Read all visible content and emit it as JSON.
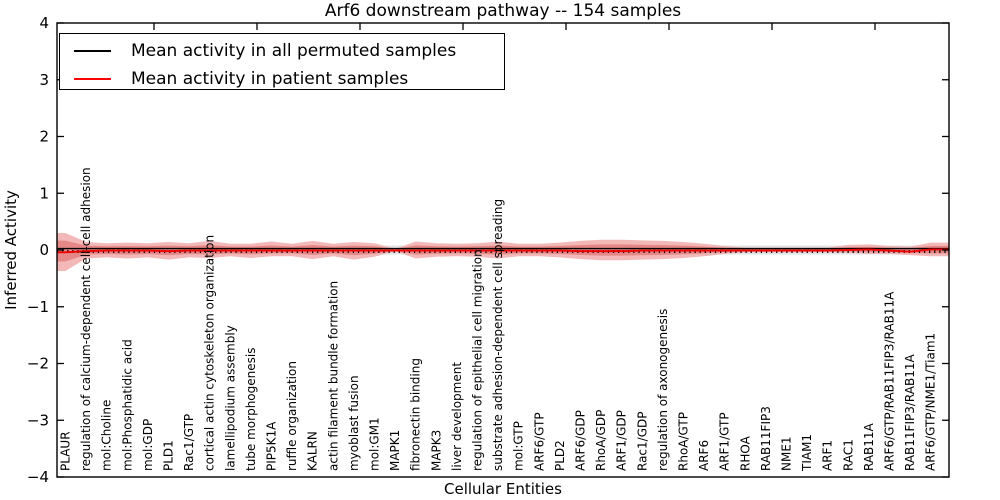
{
  "chart_data": {
    "type": "line",
    "title": "Arf6 downstream pathway -- 154 samples",
    "xlabel": "Cellular Entities",
    "ylabel": "Inferred Activity",
    "ylim": [
      -4,
      4
    ],
    "ytick_values": [
      4,
      3,
      2,
      1,
      0,
      -1,
      -2,
      -3,
      -4
    ],
    "ytick_labels": [
      "4",
      "3",
      "2",
      "1",
      "0",
      "−1",
      "−2",
      "−3",
      "−4"
    ],
    "grid": false,
    "legend_position": "upper left",
    "categories": [
      "PLAUR",
      "regulation of calcium-dependent cell-cell adhesion",
      "mol:Choline",
      "mol:Phosphatidic acid",
      "mol:GDP",
      "PLD1",
      "Rac1/GTP",
      "cortical actin cytoskeleton organization",
      "lamellipodium assembly",
      "tube morphogenesis",
      "PIP5K1A",
      "ruffle organization",
      "KALRN",
      "actin filament bundle formation",
      "myoblast fusion",
      "mol:GM1",
      "MAPK1",
      "fibronectin binding",
      "MAPK3",
      "liver development",
      "regulation of epithelial cell migration",
      "substrate adhesion-dependent cell spreading",
      "mol:GTP",
      "ARF6/GTP",
      "PLD2",
      "ARF6/GDP",
      "RhoA/GDP",
      "ARF1/GDP",
      "Rac1/GDP",
      "regulation of axonogenesis",
      "RhoA/GTP",
      "ARF6",
      "ARF1/GTP",
      "RHOA",
      "RAB11FIP3",
      "NME1",
      "TIAM1",
      "ARF1",
      "RAC1",
      "RAB11A",
      "ARF6/GTP/RAB11FIP3/RAB11A",
      "RAB11FIP3/RAB11A",
      "ARF6/GTP/NME1/Tiam1"
    ],
    "series": [
      {
        "name": "Mean activity in all permuted samples",
        "color": "#000000",
        "values": [
          0,
          0,
          0,
          0,
          0,
          0,
          0,
          0,
          0,
          0,
          0,
          0,
          0,
          0,
          0,
          0,
          0,
          0,
          0,
          0,
          0,
          0,
          0,
          0,
          0,
          0,
          0,
          0,
          0,
          0,
          0,
          0,
          0,
          0,
          0,
          0,
          0,
          0,
          0,
          0,
          0,
          0,
          0
        ]
      },
      {
        "name": "Mean activity in patient samples",
        "color": "#ff0000",
        "values": [
          -0.04,
          -0.02,
          -0.01,
          -0.01,
          -0.01,
          -0.02,
          -0.01,
          -0.01,
          -0.01,
          -0.01,
          -0.01,
          -0.01,
          -0.01,
          -0.01,
          -0.01,
          -0.01,
          -0.01,
          -0.01,
          -0.01,
          -0.01,
          -0.01,
          -0.01,
          -0.01,
          -0.01,
          -0.01,
          -0.02,
          -0.02,
          -0.02,
          -0.01,
          -0.01,
          -0.01,
          -0.01,
          -0.01,
          -0.01,
          -0.01,
          -0.01,
          -0.01,
          -0.01,
          0.0,
          0.01,
          -0.01,
          -0.03,
          0.01
        ]
      }
    ],
    "bands": {
      "patient_upper": [
        0.3,
        0.14,
        0.12,
        0.13,
        0.12,
        0.14,
        0.12,
        0.16,
        0.11,
        0.11,
        0.15,
        0.11,
        0.16,
        0.11,
        0.14,
        0.12,
        0.02,
        0.15,
        0.12,
        0.11,
        0.12,
        0.15,
        0.11,
        0.11,
        0.13,
        0.16,
        0.18,
        0.18,
        0.17,
        0.16,
        0.14,
        0.11,
        0.07,
        0.04,
        0.04,
        0.04,
        0.04,
        0.04,
        0.09,
        0.1,
        0.07,
        0.06,
        0.13
      ],
      "patient_lower": [
        -0.37,
        -0.15,
        -0.13,
        -0.15,
        -0.13,
        -0.17,
        -0.13,
        -0.14,
        -0.11,
        -0.14,
        -0.11,
        -0.11,
        -0.16,
        -0.11,
        -0.17,
        -0.12,
        -0.02,
        -0.15,
        -0.12,
        -0.11,
        -0.12,
        -0.15,
        -0.11,
        -0.11,
        -0.13,
        -0.16,
        -0.18,
        -0.18,
        -0.17,
        -0.16,
        -0.14,
        -0.11,
        -0.07,
        -0.04,
        -0.04,
        -0.04,
        -0.04,
        -0.04,
        -0.05,
        -0.07,
        -0.07,
        -0.09,
        -0.11
      ],
      "patient_inner_scale": 0.55,
      "permuted_upper": 0.08,
      "permuted_lower": -0.08
    },
    "colors": {
      "patient_band_outer": "#f0a8a8",
      "patient_band_inner": "#e47f7f",
      "permuted_band": "#cccccc",
      "patient_line": "#ee0000",
      "permuted_line": "#000000"
    }
  },
  "legend": {
    "items": [
      {
        "label": "Mean activity in all permuted samples",
        "color": "#000000"
      },
      {
        "label": "Mean activity in patient samples",
        "color": "#ff0000"
      }
    ]
  }
}
